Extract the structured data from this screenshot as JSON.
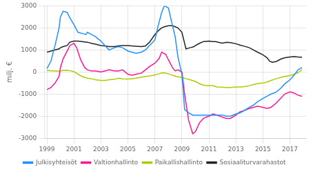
{
  "chart_data": {
    "type": "line",
    "ylabel": "milj. €",
    "xlim": [
      1998.8,
      2018.2
    ],
    "ylim": [
      -3000,
      3000
    ],
    "xticks": [
      1999,
      2001,
      2003,
      2005,
      2007,
      2009,
      2011,
      2013,
      2015,
      2017
    ],
    "yticks": [
      -3000,
      -2000,
      -1000,
      0,
      1000,
      2000,
      3000
    ],
    "grid": true,
    "legend": "bottom",
    "series": [
      {
        "name": "Julkisyhteisöt",
        "color": "#1e90ff",
        "x": [
          1999.0,
          1999.3,
          1999.6,
          1999.9,
          2000.0,
          2000.2,
          2000.5,
          2000.7,
          2001.0,
          2001.3,
          2001.6,
          2001.9,
          2002.0,
          2002.3,
          2002.6,
          2003.0,
          2003.3,
          2003.6,
          2004.0,
          2004.3,
          2004.6,
          2005.0,
          2005.3,
          2005.6,
          2006.0,
          2006.3,
          2006.6,
          2007.0,
          2007.2,
          2007.5,
          2007.7,
          2008.0,
          2008.3,
          2008.5,
          2008.7,
          2009.0,
          2009.2,
          2009.5,
          2009.8,
          2010.0,
          2010.3,
          2010.6,
          2011.0,
          2011.3,
          2011.6,
          2012.0,
          2012.3,
          2012.6,
          2013.0,
          2013.3,
          2013.6,
          2014.0,
          2014.3,
          2014.6,
          2015.0,
          2015.3,
          2015.6,
          2016.0,
          2016.3,
          2016.6,
          2017.0,
          2017.3,
          2017.6,
          2017.9
        ],
        "values": [
          150,
          500,
          1200,
          2000,
          2500,
          2750,
          2700,
          2450,
          2150,
          1800,
          1750,
          1700,
          1800,
          1700,
          1600,
          1400,
          1200,
          1000,
          1100,
          1150,
          1100,
          950,
          900,
          850,
          900,
          1000,
          1200,
          1450,
          2000,
          2700,
          3000,
          2900,
          2100,
          1600,
          700,
          -100,
          -1700,
          -1850,
          -1950,
          -1950,
          -1950,
          -1950,
          -1950,
          -1950,
          -1950,
          -1950,
          -2000,
          -2000,
          -1900,
          -1850,
          -1750,
          -1600,
          -1500,
          -1350,
          -1200,
          -1100,
          -1000,
          -900,
          -750,
          -550,
          -350,
          -150,
          100,
          200
        ]
      },
      {
        "name": "Valtionhallinto",
        "color": "#ff1493",
        "x": [
          1999.0,
          1999.3,
          1999.6,
          1999.9,
          2000.0,
          2000.2,
          2000.5,
          2000.7,
          2001.0,
          2001.2,
          2001.5,
          2001.8,
          2002.0,
          2002.3,
          2002.6,
          2003.0,
          2003.3,
          2003.6,
          2004.0,
          2004.3,
          2004.6,
          2005.0,
          2005.3,
          2005.6,
          2006.0,
          2006.3,
          2006.6,
          2007.0,
          2007.3,
          2007.5,
          2007.8,
          2008.0,
          2008.3,
          2008.5,
          2008.7,
          2009.0,
          2009.2,
          2009.5,
          2009.8,
          2010.0,
          2010.3,
          2010.6,
          2011.0,
          2011.3,
          2011.6,
          2012.0,
          2012.3,
          2012.6,
          2013.0,
          2013.3,
          2013.6,
          2014.0,
          2014.3,
          2014.6,
          2015.0,
          2015.3,
          2015.6,
          2016.0,
          2016.3,
          2016.6,
          2017.0,
          2017.3,
          2017.6,
          2017.9
        ],
        "values": [
          -800,
          -700,
          -500,
          -200,
          200,
          600,
          950,
          1200,
          1300,
          1100,
          550,
          200,
          100,
          50,
          50,
          0,
          50,
          100,
          50,
          50,
          100,
          -100,
          -150,
          -100,
          -50,
          100,
          250,
          400,
          600,
          900,
          800,
          550,
          200,
          50,
          100,
          0,
          -1000,
          -2200,
          -2800,
          -2700,
          -2300,
          -2100,
          -2000,
          -1900,
          -1950,
          -2050,
          -2100,
          -2100,
          -1950,
          -1800,
          -1750,
          -1650,
          -1600,
          -1550,
          -1600,
          -1650,
          -1600,
          -1400,
          -1200,
          -1000,
          -900,
          -950,
          -1050,
          -1100
        ]
      },
      {
        "name": "Paikallishallinto",
        "color": "#aacc00",
        "x": [
          1999.0,
          1999.3,
          1999.6,
          1999.9,
          2000.0,
          2000.2,
          2000.5,
          2000.7,
          2001.0,
          2001.3,
          2001.6,
          2002.0,
          2002.3,
          2002.6,
          2003.0,
          2003.3,
          2003.6,
          2004.0,
          2004.3,
          2004.6,
          2005.0,
          2005.3,
          2005.6,
          2006.0,
          2006.3,
          2006.6,
          2007.0,
          2007.3,
          2007.6,
          2008.0,
          2008.3,
          2008.6,
          2009.0,
          2009.3,
          2009.6,
          2010.0,
          2010.3,
          2010.6,
          2011.0,
          2011.3,
          2011.6,
          2012.0,
          2012.3,
          2012.6,
          2013.0,
          2013.3,
          2013.6,
          2014.0,
          2014.3,
          2014.6,
          2015.0,
          2015.3,
          2015.6,
          2016.0,
          2016.3,
          2016.6,
          2017.0,
          2017.3,
          2017.6,
          2017.9
        ],
        "values": [
          70,
          60,
          50,
          40,
          50,
          70,
          80,
          60,
          20,
          -100,
          -200,
          -280,
          -300,
          -350,
          -380,
          -380,
          -350,
          -330,
          -280,
          -310,
          -320,
          -300,
          -280,
          -230,
          -200,
          -180,
          -130,
          -80,
          -30,
          -80,
          -150,
          -200,
          -250,
          -300,
          -350,
          -430,
          -530,
          -600,
          -620,
          -620,
          -680,
          -690,
          -700,
          -700,
          -680,
          -680,
          -660,
          -620,
          -570,
          -520,
          -500,
          -450,
          -380,
          -300,
          -250,
          -200,
          -160,
          -100,
          -30,
          100
        ]
      },
      {
        "name": "Sosiaaliturvarahastot",
        "color": "#222222",
        "x": [
          1999.0,
          1999.3,
          1999.6,
          1999.9,
          2000.0,
          2000.2,
          2000.5,
          2000.7,
          2001.0,
          2001.3,
          2001.6,
          2002.0,
          2002.3,
          2002.6,
          2003.0,
          2003.3,
          2003.6,
          2004.0,
          2004.3,
          2004.6,
          2005.0,
          2005.3,
          2005.6,
          2006.0,
          2006.3,
          2006.6,
          2007.0,
          2007.3,
          2007.5,
          2007.7,
          2008.0,
          2008.3,
          2008.5,
          2008.7,
          2009.0,
          2009.3,
          2009.6,
          2009.9,
          2010.0,
          2010.3,
          2010.6,
          2011.0,
          2011.3,
          2011.5,
          2011.7,
          2012.0,
          2012.3,
          2012.6,
          2013.0,
          2013.3,
          2013.6,
          2014.0,
          2014.3,
          2014.6,
          2015.0,
          2015.3,
          2015.5,
          2015.7,
          2016.0,
          2016.3,
          2016.6,
          2017.0,
          2017.3,
          2017.6,
          2017.9
        ],
        "values": [
          900,
          950,
          1000,
          1050,
          1100,
          1150,
          1200,
          1350,
          1400,
          1400,
          1380,
          1350,
          1300,
          1260,
          1200,
          1180,
          1150,
          1150,
          1180,
          1200,
          1200,
          1180,
          1170,
          1150,
          1180,
          1350,
          1700,
          1900,
          2000,
          2050,
          2100,
          2100,
          2050,
          2000,
          1800,
          1050,
          1100,
          1150,
          1200,
          1300,
          1380,
          1400,
          1380,
          1380,
          1350,
          1310,
          1350,
          1330,
          1280,
          1220,
          1170,
          1100,
          1000,
          900,
          780,
          650,
          490,
          440,
          480,
          580,
          640,
          680,
          700,
          680,
          670
        ]
      }
    ]
  }
}
